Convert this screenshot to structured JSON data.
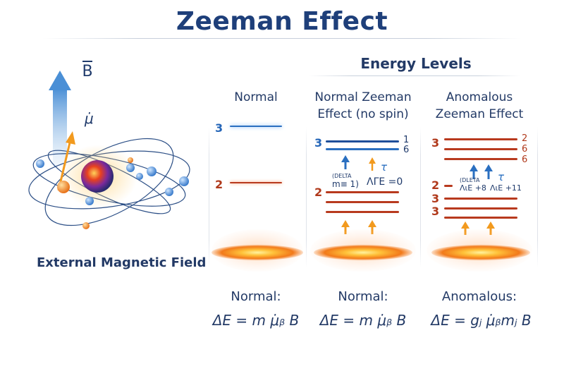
{
  "title": "Zeeman Effect",
  "section_title": "Energy Levels",
  "left": {
    "b_label": "B",
    "mu_label": "μ̇",
    "field_label": "External Magnetic Field"
  },
  "columns": [
    {
      "heading_lines": [
        "Normal"
      ],
      "levels": [
        {
          "label": "3"
        },
        {
          "label": "2"
        }
      ],
      "formula_label": "Normal:",
      "formula": "ΔE = m μ̇ᵦ B"
    },
    {
      "heading_lines": [
        "Normal Zeeman",
        "Effect (no spin)"
      ],
      "level_labels": [
        "3",
        "2"
      ],
      "right_labels": [
        "1",
        "6"
      ],
      "annot_small": "(DELTA",
      "annot_m": "m≡ 1)",
      "annot_tau": "τ",
      "annot_eq": "ΛΓE =0",
      "formula_label": "Normal:",
      "formula": "ΔE = m μ̇ᵦ B"
    },
    {
      "heading_lines": [
        "Anomalous",
        "Zeeman Effect"
      ],
      "level_labels": [
        "3",
        "2",
        "3",
        "3"
      ],
      "right_labels": [
        "2",
        "6",
        "6"
      ],
      "annot_small": "(DLETA",
      "annot_tau": "τ",
      "annot_a": "ΛιΕ +8",
      "annot_b": "ΛιΕ +11",
      "formula_label": "Anomalous:",
      "formula": "ΔE = gⱼ μ̇ᵦmⱼ B"
    }
  ],
  "colors": {
    "title": "#1e3f7a",
    "blue_level": "#2a6fc0",
    "red_level": "#b83a1e",
    "orange": "#f29a1e"
  }
}
